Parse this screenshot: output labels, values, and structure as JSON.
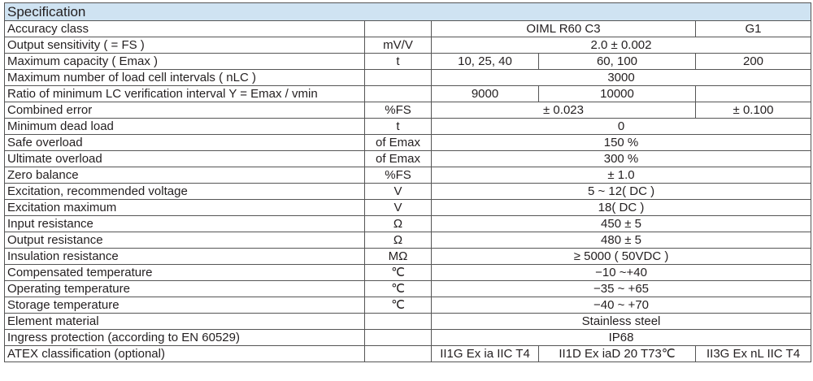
{
  "header": {
    "title": "Specification"
  },
  "table": {
    "rows": [
      {
        "label": "Accuracy class",
        "unit": null,
        "cells": [
          "OIML R60 C3",
          "G1"
        ]
      },
      {
        "label": "Output sensitivity ( = FS )",
        "unit": "mV/V",
        "cells": [
          "2.0 ± 0.002"
        ]
      },
      {
        "label": "Maximum capacity ( Emax )",
        "unit": "t",
        "cells": [
          "10, 25, 40",
          "60, 100",
          "200"
        ]
      },
      {
        "label": "Maximum number of load cell intervals ( nLC )",
        "unit": null,
        "cells": [
          "3000"
        ]
      },
      {
        "label": "Ratio of minimum LC verification interval Y = Emax / vmin",
        "unit": null,
        "cells": [
          "9000",
          "10000",
          null
        ]
      },
      {
        "label": "Combined error",
        "unit": "%FS",
        "cells": [
          "± 0.023",
          "± 0.100"
        ]
      },
      {
        "label": "Minimum dead load",
        "unit": "t",
        "cells": [
          "0"
        ]
      },
      {
        "label": "Safe overload",
        "unit": "of Emax",
        "cells": [
          "150 %"
        ]
      },
      {
        "label": "Ultimate overload",
        "unit": "of Emax",
        "cells": [
          "300 %"
        ]
      },
      {
        "label": "Zero balance",
        "unit": "%FS",
        "cells": [
          "± 1.0"
        ]
      },
      {
        "label": "Excitation, recommended voltage",
        "unit": "V",
        "cells": [
          "5 ~ 12( DC )"
        ]
      },
      {
        "label": "Excitation maximum",
        "unit": "V",
        "cells": [
          "18( DC )"
        ]
      },
      {
        "label": "Input resistance",
        "unit": "Ω",
        "cells": [
          "450 ± 5"
        ]
      },
      {
        "label": "Output resistance",
        "unit": "Ω",
        "cells": [
          "480 ± 5"
        ]
      },
      {
        "label": "Insulation resistance",
        "unit": "MΩ",
        "cells": [
          "≥ 5000 ( 50VDC )"
        ]
      },
      {
        "label": "Compensated temperature",
        "unit": "℃",
        "cells": [
          "−10 ~+40"
        ]
      },
      {
        "label": "Operating temperature",
        "unit": "℃",
        "cells": [
          "−35 ~ +65"
        ]
      },
      {
        "label": "Storage temperature",
        "unit": "℃",
        "cells": [
          "−40 ~ +70"
        ]
      },
      {
        "label": "Element material",
        "unit": null,
        "cells": [
          "Stainless steel"
        ]
      },
      {
        "label": "Ingress protection (according to EN 60529)",
        "unit": null,
        "cells": [
          "IP68"
        ]
      },
      {
        "label": "ATEX classification (optional)",
        "unit": null,
        "cells": [
          "II1G Ex ia IIC T4",
          "II1D Ex iaD 20 T73℃",
          "II3G Ex nL IIC T4"
        ]
      }
    ]
  }
}
